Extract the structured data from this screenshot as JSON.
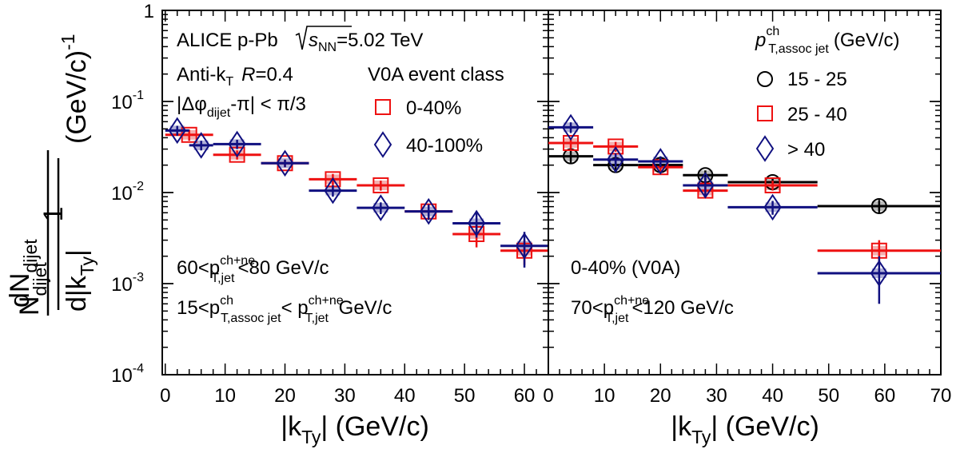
{
  "colors": {
    "red": "#ee1111",
    "blue": "#101080",
    "black": "#000000",
    "red_band": "#f4b0b0",
    "blue_band": "#b0b0d8",
    "black_band": "#bbbbbb"
  },
  "y_axis": {
    "label_num": "1",
    "label_den": "N",
    "label_den_sub": "dijet",
    "label_frac_num": "dN",
    "label_frac_num_sub": "dijet",
    "label_frac_den": "d|k",
    "label_frac_den_sub": "Ty",
    "label_frac_den_end": "|",
    "label_unit": "(GeV/c)",
    "label_unit_sup": "-1",
    "ticks": [
      {
        "base": "1",
        "exp": "",
        "value": 1
      },
      {
        "base": "10",
        "exp": "-1",
        "value": 0.1
      },
      {
        "base": "10",
        "exp": "-2",
        "value": 0.01
      },
      {
        "base": "10",
        "exp": "-3",
        "value": 0.001
      },
      {
        "base": "10",
        "exp": "-4",
        "value": 0.0001
      }
    ]
  },
  "left_panel": {
    "xlabel_pre": "|k",
    "xlabel_sub": "Ty",
    "xlabel_post": "| (GeV/c)",
    "x_ticks": [
      "0",
      "10",
      "20",
      "30",
      "40",
      "50",
      "60"
    ],
    "text": {
      "l1": "ALICE p-Pb",
      "l1_sqrt_s": "s",
      "l1_sqrt_sub": "NN",
      "l1_energy": "=5.02 TeV",
      "l2_a": "Anti-k",
      "l2_sub": "T",
      "l2_b": "R=0.4",
      "l3_a": "|Δφ",
      "l3_sub": "dijet",
      "l3_b": "-π| < π/3",
      "legend_title": "V0A event class",
      "b1_pre": "60<p",
      "b1_sup": "ch+ne",
      "b1_sub": "T,jet",
      "b1_post": "<80 GeV/c",
      "b2_pre": "15<p",
      "b2_sup": "ch",
      "b2_sub": "T,assoc jet",
      "b2_mid": "< p",
      "b2_sup2": "ch+ne",
      "b2_sub2": "T,jet",
      "b2_post": " GeV/c"
    },
    "legend": [
      {
        "label": "0-40%"
      },
      {
        "label": "40-100%"
      }
    ]
  },
  "right_panel": {
    "xlabel_pre": "|k",
    "xlabel_sub": "Ty",
    "xlabel_post": "| (GeV/c)",
    "x_ticks": [
      "0",
      "10",
      "20",
      "30",
      "40",
      "50",
      "60",
      "70"
    ],
    "text": {
      "legend_title_p": "p",
      "legend_title_sup": "ch",
      "legend_title_sub": "T,assoc jet",
      "legend_title_unit": "(GeV/c)",
      "c1": "0-40% (V0A)",
      "b1_pre": "70<p",
      "b1_sup": "ch+ne",
      "b1_sub": "T,jet",
      "b1_post": "<120 GeV/c"
    },
    "legend": [
      {
        "label": "15 - 25"
      },
      {
        "label": "25 - 40"
      },
      {
        "label": "> 40"
      }
    ]
  },
  "chart_data": [
    {
      "type": "scatter",
      "panel": "left",
      "xlabel": "|kTy| (GeV/c)",
      "ylabel": "1/Ndijet dNdijet/d|kTy| (GeV/c)^-1",
      "xlim": [
        -0.5,
        64
      ],
      "ylim": [
        0.0001,
        1
      ],
      "yscale": "log",
      "series": [
        {
          "name": "0-40%",
          "marker": "open-square",
          "color": "red",
          "points": [
            {
              "x": 4,
              "xlo": 0,
              "xhi": 8,
              "y": 0.043,
              "err": 0.006
            },
            {
              "x": 12,
              "xlo": 8,
              "xhi": 16,
              "y": 0.026,
              "err": 0.003
            },
            {
              "x": 20,
              "xlo": 16,
              "xhi": 24,
              "y": 0.021,
              "err": 0.002
            },
            {
              "x": 28,
              "xlo": 24,
              "xhi": 32,
              "y": 0.014,
              "err": 0.002
            },
            {
              "x": 36,
              "xlo": 32,
              "xhi": 40,
              "y": 0.012,
              "err": 0.0015
            },
            {
              "x": 44,
              "xlo": 40,
              "xhi": 48,
              "y": 0.0062,
              "err": 0.001
            },
            {
              "x": 52,
              "xlo": 48,
              "xhi": 56,
              "y": 0.0035,
              "err": 0.001
            },
            {
              "x": 60,
              "xlo": 56,
              "xhi": 64,
              "y": 0.0023,
              "err": 0.0007
            }
          ]
        },
        {
          "name": "40-100%",
          "marker": "open-diamond",
          "color": "blue",
          "points": [
            {
              "x": 2,
              "xlo": 0,
              "xhi": 4,
              "y": 0.048,
              "err": 0.006
            },
            {
              "x": 6,
              "xlo": 4,
              "xhi": 8,
              "y": 0.033,
              "err": 0.004
            },
            {
              "x": 12,
              "xlo": 8,
              "xhi": 16,
              "y": 0.034,
              "err": 0.004
            },
            {
              "x": 20,
              "xlo": 16,
              "xhi": 24,
              "y": 0.021,
              "err": 0.002
            },
            {
              "x": 28,
              "xlo": 24,
              "xhi": 32,
              "y": 0.0105,
              "err": 0.0015
            },
            {
              "x": 36,
              "xlo": 32,
              "xhi": 40,
              "y": 0.0068,
              "err": 0.001
            },
            {
              "x": 44,
              "xlo": 40,
              "xhi": 48,
              "y": 0.0062,
              "err": 0.0012
            },
            {
              "x": 52,
              "xlo": 48,
              "xhi": 56,
              "y": 0.0046,
              "err": 0.0014
            },
            {
              "x": 60,
              "xlo": 56,
              "xhi": 64,
              "y": 0.0026,
              "err": 0.0011
            }
          ]
        }
      ]
    },
    {
      "type": "scatter",
      "panel": "right",
      "xlabel": "|kTy| (GeV/c)",
      "ylabel": "1/Ndijet dNdijet/d|kTy| (GeV/c)^-1",
      "xlim": [
        0,
        70
      ],
      "ylim": [
        0.0001,
        1
      ],
      "yscale": "log",
      "series": [
        {
          "name": "15 - 25",
          "marker": "open-circle",
          "color": "black",
          "points": [
            {
              "x": 4,
              "xlo": 0,
              "xhi": 8,
              "y": 0.025,
              "err": 0.004
            },
            {
              "x": 12,
              "xlo": 8,
              "xhi": 16,
              "y": 0.02,
              "err": 0.003
            },
            {
              "x": 20,
              "xlo": 16,
              "xhi": 24,
              "y": 0.02,
              "err": 0.002
            },
            {
              "x": 28,
              "xlo": 24,
              "xhi": 32,
              "y": 0.0155,
              "err": 0.002
            },
            {
              "x": 40,
              "xlo": 32,
              "xhi": 48,
              "y": 0.013,
              "err": 0.0015
            },
            {
              "x": 59,
              "xlo": 48,
              "xhi": 70,
              "y": 0.0071,
              "err": 0.0012
            }
          ]
        },
        {
          "name": "25 - 40",
          "marker": "open-square",
          "color": "red",
          "points": [
            {
              "x": 4,
              "xlo": 0,
              "xhi": 8,
              "y": 0.035,
              "err": 0.005
            },
            {
              "x": 12,
              "xlo": 8,
              "xhi": 16,
              "y": 0.032,
              "err": 0.004
            },
            {
              "x": 20,
              "xlo": 16,
              "xhi": 24,
              "y": 0.019,
              "err": 0.002
            },
            {
              "x": 28,
              "xlo": 24,
              "xhi": 32,
              "y": 0.0105,
              "err": 0.0015
            },
            {
              "x": 40,
              "xlo": 32,
              "xhi": 48,
              "y": 0.012,
              "err": 0.0015
            },
            {
              "x": 59,
              "xlo": 48,
              "xhi": 70,
              "y": 0.0023,
              "err": 0.0007
            }
          ]
        },
        {
          "name": "> 40",
          "marker": "open-diamond",
          "color": "blue",
          "points": [
            {
              "x": 4,
              "xlo": 0,
              "xhi": 8,
              "y": 0.052,
              "err": 0.007
            },
            {
              "x": 12,
              "xlo": 8,
              "xhi": 16,
              "y": 0.023,
              "err": 0.004
            },
            {
              "x": 20,
              "xlo": 16,
              "xhi": 24,
              "y": 0.022,
              "err": 0.003
            },
            {
              "x": 28,
              "xlo": 24,
              "xhi": 32,
              "y": 0.012,
              "err": 0.003
            },
            {
              "x": 40,
              "xlo": 32,
              "xhi": 48,
              "y": 0.0069,
              "err": 0.0012
            },
            {
              "x": 59,
              "xlo": 48,
              "xhi": 70,
              "y": 0.0013,
              "err": 0.0007
            }
          ]
        }
      ]
    }
  ]
}
